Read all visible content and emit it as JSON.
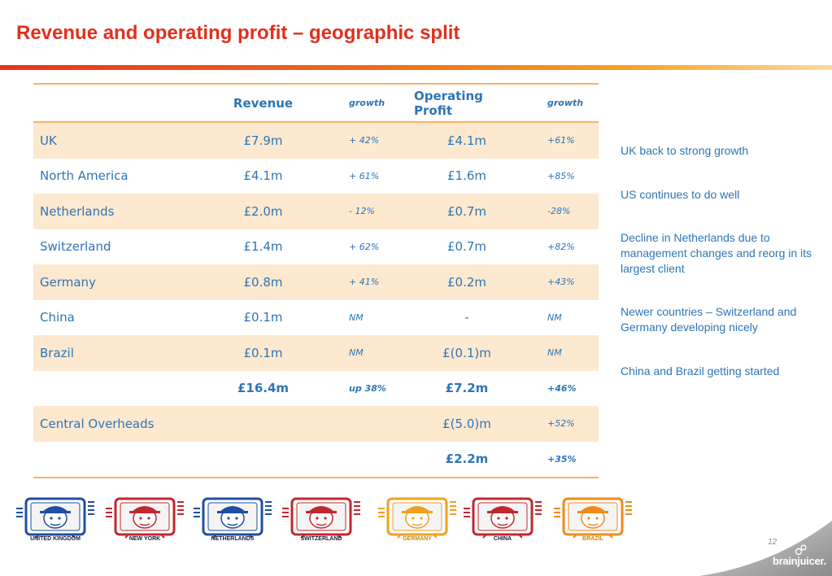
{
  "title": "Revenue and operating profit – geographic split",
  "table": {
    "headers": {
      "name": "",
      "revenue": "Revenue",
      "revenue_growth": "growth",
      "operating_profit": "Operating Profit",
      "profit_growth": "growth"
    },
    "rows": [
      {
        "name": "UK",
        "revenue": "£7.9m",
        "revenue_growth": "+ 42%",
        "operating_profit": "£4.1m",
        "profit_growth": "+61%"
      },
      {
        "name": "North America",
        "revenue": "£4.1m",
        "revenue_growth": "+ 61%",
        "operating_profit": "£1.6m",
        "profit_growth": "+85%"
      },
      {
        "name": "Netherlands",
        "revenue": "£2.0m",
        "revenue_growth": "- 12%",
        "operating_profit": "£0.7m",
        "profit_growth": "-28%"
      },
      {
        "name": "Switzerland",
        "revenue": "£1.4m",
        "revenue_growth": "+ 62%",
        "operating_profit": "£0.7m",
        "profit_growth": "+82%"
      },
      {
        "name": "Germany",
        "revenue": "£0.8m",
        "revenue_growth": "+ 41%",
        "operating_profit": "£0.2m",
        "profit_growth": "+43%"
      },
      {
        "name": "China",
        "revenue": "£0.1m",
        "revenue_growth": "NM",
        "operating_profit": "-",
        "profit_growth": "NM"
      },
      {
        "name": "Brazil",
        "revenue": "£0.1m",
        "revenue_growth": "NM",
        "operating_profit": "£(0.1)m",
        "profit_growth": "NM"
      },
      {
        "name": "",
        "revenue": "£16.4m",
        "revenue_growth": "up 38%",
        "operating_profit": "£7.2m",
        "profit_growth": "+46%"
      },
      {
        "name": "Central Overheads",
        "revenue": "",
        "revenue_growth": "",
        "operating_profit": "£(5.0)m",
        "profit_growth": "+52%"
      },
      {
        "name": "",
        "revenue": "",
        "revenue_growth": "",
        "operating_profit": "£2.2m",
        "profit_growth": "+35%"
      }
    ]
  },
  "comments": [
    "UK back to strong growth",
    "US continues to do well",
    "Decline in Netherlands due to management changes and reorg in its largest client",
    "Newer countries – Switzerland and Germany developing nicely",
    "China and Brazil getting started"
  ],
  "logos": [
    {
      "label": "UNITED KINGDOM",
      "icon": "tv-character-icon",
      "color": "#1f4fa0"
    },
    {
      "label": "NEW YORK",
      "icon": "tv-character-icon",
      "color": "#c0282d"
    },
    {
      "label": "NETHERLANDS",
      "icon": "tv-character-icon",
      "color": "#1f4fa0"
    },
    {
      "label": "SWITZERLAND",
      "icon": "tv-character-icon",
      "color": "#c0282d"
    },
    {
      "label": "GERMANY",
      "icon": "tv-character-icon",
      "color": "#f0a020"
    },
    {
      "label": "CHINA",
      "icon": "tv-character-icon",
      "color": "#c0282d"
    },
    {
      "label": "BRAZIL",
      "icon": "tv-character-icon",
      "color": "#f08a1c"
    }
  ],
  "page_number": "12",
  "brand": "brainjuicer.",
  "colors": {
    "title": "#e0301e",
    "text": "#2e75b6",
    "row_shade": "#fde9cf",
    "rule": "#f6b26b"
  }
}
